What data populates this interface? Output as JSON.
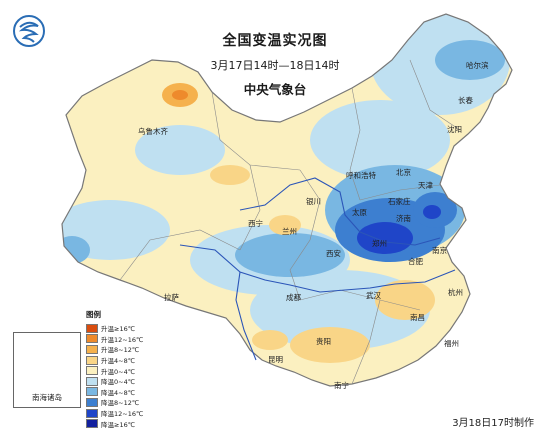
{
  "title": "全国变温实况图",
  "period": "3月17日14时—18日14时",
  "organization": "中央气象台",
  "credit": "3月18日17时制作",
  "legend": {
    "title": "图例",
    "items": [
      {
        "label": "升温≥16℃",
        "color": "#d94d0f"
      },
      {
        "label": "升温12~16℃",
        "color": "#ee8a2c"
      },
      {
        "label": "升温8~12℃",
        "color": "#f5b14d"
      },
      {
        "label": "升温4~8℃",
        "color": "#f9d587"
      },
      {
        "label": "升温0~4℃",
        "color": "#fbf0c0"
      },
      {
        "label": "降温0~4℃",
        "color": "#bfe0f1"
      },
      {
        "label": "降温4~8℃",
        "color": "#79b7e2"
      },
      {
        "label": "降温8~12℃",
        "color": "#3d7fd0"
      },
      {
        "label": "降温12~16℃",
        "color": "#1f45c8"
      },
      {
        "label": "降温≥16℃",
        "color": "#12209e"
      }
    ]
  },
  "inset_label": "南海诸岛",
  "cities": [
    {
      "name": "哈尔滨"
    },
    {
      "name": "长春"
    },
    {
      "name": "沈阳"
    },
    {
      "name": "乌鲁木齐"
    },
    {
      "name": "呼和浩特"
    },
    {
      "name": "北京"
    },
    {
      "name": "天津"
    },
    {
      "name": "石家庄"
    },
    {
      "name": "银川"
    },
    {
      "name": "太原"
    },
    {
      "name": "济南"
    },
    {
      "name": "西宁"
    },
    {
      "name": "兰州"
    },
    {
      "name": "郑州"
    },
    {
      "name": "西安"
    },
    {
      "name": "合肥"
    },
    {
      "name": "南京"
    },
    {
      "name": "拉萨"
    },
    {
      "name": "成都"
    },
    {
      "name": "武汉"
    },
    {
      "name": "杭州"
    },
    {
      "name": "贵阳"
    },
    {
      "name": "南昌"
    },
    {
      "name": "福州"
    },
    {
      "name": "昆明"
    },
    {
      "name": "南宁"
    }
  ]
}
